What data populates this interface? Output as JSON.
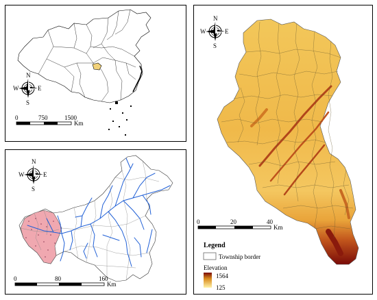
{
  "compass": {
    "n": "N",
    "s": "S",
    "e": "E",
    "w": "W"
  },
  "panel_china": {
    "scale_ticks": [
      "0",
      "750",
      "1500"
    ],
    "scale_unit": "Km"
  },
  "panel_basin": {
    "scale_ticks": [
      "0",
      "80",
      "160"
    ],
    "scale_unit": "Km"
  },
  "panel_elevation": {
    "scale_ticks": [
      "0",
      "20",
      "40"
    ],
    "scale_unit": "Km",
    "legend": {
      "title": "Legend",
      "township_label": "Township border",
      "elevation_label": "Elevation",
      "elev_max": "1564",
      "elev_min": "125"
    }
  },
  "colors": {
    "elev_high": "#7a0b08",
    "elev_mid": "#d98b1d",
    "elev_low": "#fff2a8",
    "river": "#1f5fd6",
    "study_area_fill": "#f0a8b0",
    "highlight": "#f2d27a"
  }
}
